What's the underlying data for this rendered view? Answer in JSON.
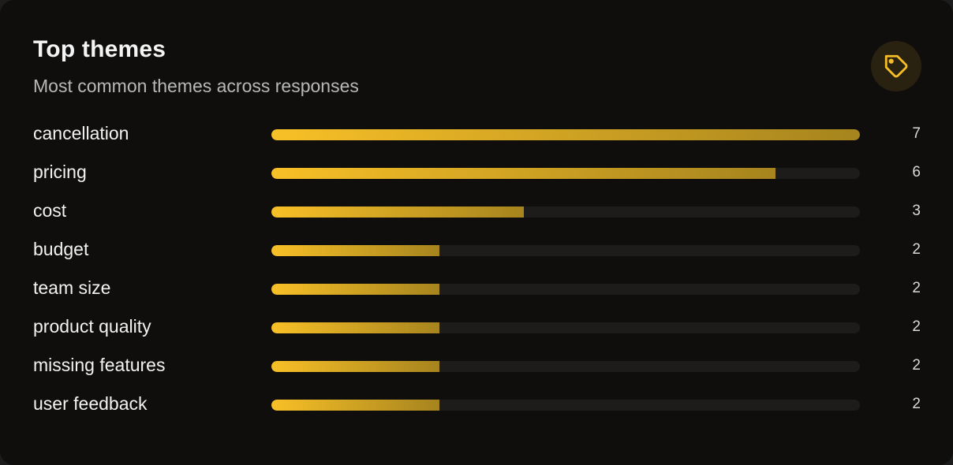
{
  "card": {
    "title": "Top themes",
    "subtitle": "Most common themes across responses",
    "icon": "tag-icon"
  },
  "colors": {
    "background": "#0f0e0d",
    "bar_start": "#f8c027",
    "bar_end": "#a6841e",
    "track": "#1d1c1b",
    "icon": "#f5bd26"
  },
  "chart_data": {
    "type": "bar",
    "orientation": "horizontal",
    "title": "Top themes",
    "subtitle": "Most common themes across responses",
    "categories": [
      "cancellation",
      "pricing",
      "cost",
      "budget",
      "team size",
      "product quality",
      "missing features",
      "user feedback"
    ],
    "values": [
      7,
      6,
      3,
      2,
      2,
      2,
      2,
      2
    ],
    "xlim": [
      0,
      7
    ],
    "grid": false,
    "legend": "none"
  }
}
